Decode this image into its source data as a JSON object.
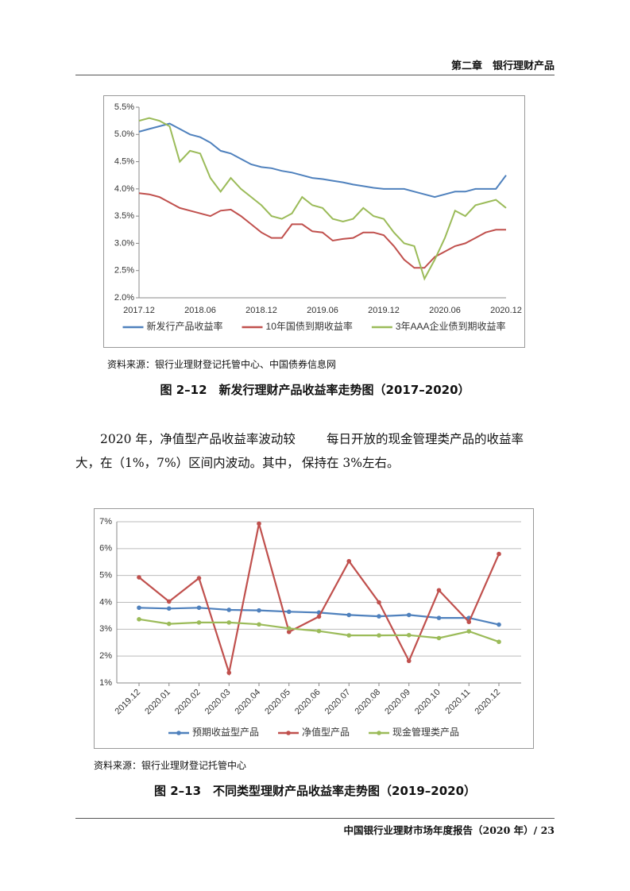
{
  "header": {
    "chapter": "第二章　银行理财产品"
  },
  "chart_data": [
    {
      "type": "line",
      "title": "图 2–12　新发行理财产品收益率走势图（2017–2020）",
      "source": "资料来源：银行业理财登记托管中心、中国债券信息网",
      "categories": [
        "2017.12",
        null,
        null,
        null,
        null,
        null,
        "2018.06",
        null,
        null,
        null,
        null,
        null,
        "2018.12",
        null,
        null,
        null,
        null,
        null,
        "2019.06",
        null,
        null,
        null,
        null,
        null,
        "2019.12",
        null,
        null,
        null,
        null,
        null,
        "2020.06",
        null,
        null,
        null,
        null,
        null,
        "2020.12"
      ],
      "series": [
        {
          "name": "新发行产品收益率",
          "color": "#4f81bd",
          "values": [
            5.05,
            5.1,
            5.15,
            5.2,
            5.1,
            5.0,
            4.95,
            4.85,
            4.7,
            4.65,
            4.55,
            4.45,
            4.4,
            4.38,
            4.33,
            4.3,
            4.25,
            4.2,
            4.18,
            4.15,
            4.12,
            4.08,
            4.05,
            4.02,
            4.0,
            4.0,
            4.0,
            3.95,
            3.9,
            3.85,
            3.9,
            3.95,
            3.95,
            4.0,
            4.0,
            4.0,
            4.25
          ]
        },
        {
          "name": "10年国债到期收益率",
          "color": "#c0504d",
          "values": [
            3.92,
            3.9,
            3.85,
            3.75,
            3.65,
            3.6,
            3.55,
            3.5,
            3.6,
            3.62,
            3.5,
            3.35,
            3.2,
            3.1,
            3.1,
            3.35,
            3.35,
            3.22,
            3.2,
            3.05,
            3.08,
            3.1,
            3.2,
            3.2,
            3.15,
            2.95,
            2.7,
            2.55,
            2.55,
            2.75,
            2.85,
            2.95,
            3.0,
            3.1,
            3.2,
            3.25,
            3.25
          ]
        },
        {
          "name": "3年AAA企业债到期收益率",
          "color": "#9bbb59",
          "values": [
            5.25,
            5.3,
            5.25,
            5.15,
            4.5,
            4.7,
            4.65,
            4.2,
            3.95,
            4.2,
            4.0,
            3.85,
            3.7,
            3.5,
            3.45,
            3.55,
            3.85,
            3.7,
            3.65,
            3.45,
            3.4,
            3.45,
            3.65,
            3.5,
            3.45,
            3.2,
            3.0,
            2.95,
            2.35,
            2.7,
            3.1,
            3.6,
            3.5,
            3.7,
            3.75,
            3.8,
            3.65
          ]
        }
      ],
      "ylim": [
        2.0,
        5.5
      ],
      "yticks": [
        {
          "value": 2.0,
          "label": "2.0%"
        },
        {
          "value": 2.5,
          "label": "2.5%"
        },
        {
          "value": 3.0,
          "label": "3.0%"
        },
        {
          "value": 3.5,
          "label": "3.5%"
        },
        {
          "value": 4.0,
          "label": "4.0%"
        },
        {
          "value": 4.5,
          "label": "4.5%"
        },
        {
          "value": 5.0,
          "label": "5.0%"
        },
        {
          "value": 5.5,
          "label": "5.5%"
        }
      ],
      "grid": false,
      "markers": false,
      "legend": "bottom"
    },
    {
      "type": "line",
      "title": "图 2–13　不同类型理财产品收益率走势图（2019–2020）",
      "source": "资料来源：银行业理财登记托管中心",
      "categories": [
        "2019.12",
        "2020.01",
        "2020.02",
        "2020.03",
        "2020.04",
        "2020.05",
        "2020.06",
        "2020.07",
        "2020.08",
        "2020.09",
        "2020.10",
        "2020.11",
        "2020.12"
      ],
      "series": [
        {
          "name": "预期收益型产品",
          "color": "#4f81bd",
          "values": [
            3.8,
            3.77,
            3.8,
            3.72,
            3.7,
            3.65,
            3.62,
            3.53,
            3.48,
            3.53,
            3.42,
            3.42,
            3.17
          ]
        },
        {
          "name": "净值型产品",
          "color": "#c0504d",
          "values": [
            4.93,
            4.03,
            4.9,
            1.38,
            6.93,
            2.9,
            3.47,
            5.53,
            4.0,
            1.82,
            4.45,
            3.27,
            5.8
          ]
        },
        {
          "name": "现金管理类产品",
          "color": "#9bbb59",
          "values": [
            3.37,
            3.2,
            3.25,
            3.25,
            3.18,
            3.03,
            2.93,
            2.77,
            2.77,
            2.78,
            2.67,
            2.92,
            2.53
          ]
        }
      ],
      "ylim": [
        1,
        7
      ],
      "yticks": [
        {
          "value": 1,
          "label": "1%"
        },
        {
          "value": 2,
          "label": "2%"
        },
        {
          "value": 3,
          "label": "3%"
        },
        {
          "value": 4,
          "label": "4%"
        },
        {
          "value": 5,
          "label": "5%"
        },
        {
          "value": 6,
          "label": "6%"
        },
        {
          "value": 7,
          "label": "7%"
        }
      ],
      "grid": true,
      "markers": true,
      "legend": "bottom"
    }
  ],
  "body": {
    "paragraphs": [
      "2020 年，净值型产品收益率波动较大，在（1%，7%）区间内波动。其中，",
      "每日开放的现金管理类产品的收益率保持在 3%左右。"
    ]
  },
  "footer": {
    "text": "中国银行业理财市场年度报告（2020 年）/ 23"
  }
}
